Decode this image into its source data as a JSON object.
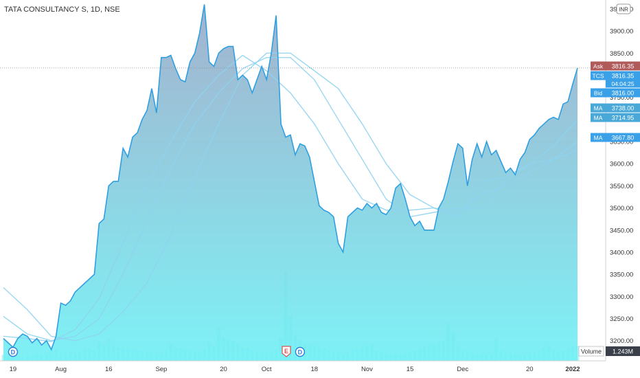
{
  "symbol_title": "TATA CONSULTANCY S, 1D, NSE",
  "currency_badge": "INR",
  "volume_label": "Volume",
  "volume_value": "1.243M",
  "price_labels": [
    {
      "tag": "Ask",
      "value": "3816.35",
      "color": "#b05a5a"
    },
    {
      "tag": "TCS",
      "value": "3816.35",
      "sub": "04:04:25",
      "color": "#3aa0e8"
    },
    {
      "tag": "Bid",
      "value": "3816.00",
      "color": "#3aa0e8"
    },
    {
      "tag": "MA",
      "value": "3738.00",
      "color": "#4aa8d8"
    },
    {
      "tag": "MA",
      "value": "3714.95",
      "color": "#4aa8d8"
    },
    {
      "tag": "MA",
      "value": "3667.80",
      "color": "#3aa0e8"
    }
  ],
  "events": [
    {
      "label": "D",
      "kind": "dividend",
      "x": 2
    },
    {
      "label": "E",
      "kind": "earnings",
      "x": 60
    },
    {
      "label": "D",
      "kind": "dividend",
      "x": 62
    }
  ],
  "colors": {
    "line": "#2f9fe0",
    "ma": "#8fd3ef",
    "area_top": "#9aa9c8",
    "area_bottom": "#6ff0f5",
    "volume": "#7fe9ea",
    "axis_text": "#333333",
    "current_price_line": "#888888"
  },
  "chart_data": {
    "type": "area",
    "title": "TATA CONSULTANCY S, 1D, NSE",
    "xlabel": "",
    "ylabel": "",
    "ylim": [
      3170,
      3970
    ],
    "x_range": [
      0,
      119
    ],
    "x_ticks": [
      {
        "x": 2,
        "label": "19"
      },
      {
        "x": 12,
        "label": "Aug"
      },
      {
        "x": 22,
        "label": "16"
      },
      {
        "x": 33,
        "label": "Sep"
      },
      {
        "x": 46,
        "label": "20"
      },
      {
        "x": 55,
        "label": "Oct"
      },
      {
        "x": 65,
        "label": "18"
      },
      {
        "x": 76,
        "label": "Nov"
      },
      {
        "x": 85,
        "label": "15"
      },
      {
        "x": 96,
        "label": "Dec"
      },
      {
        "x": 110,
        "label": "20"
      },
      {
        "x": 119,
        "label": "2022"
      }
    ],
    "y_ticks": [
      3200,
      3250,
      3300,
      3350,
      3400,
      3450,
      3500,
      3550,
      3600,
      3650,
      3700,
      3750,
      3800,
      3850,
      3900,
      3950
    ],
    "current_price": 3816.35,
    "series": [
      {
        "name": "TCS",
        "x": [
          0,
          1,
          2,
          3,
          4,
          5,
          6,
          7,
          8,
          9,
          10,
          11,
          12,
          13,
          14,
          15,
          16,
          17,
          18,
          19,
          20,
          21,
          22,
          23,
          24,
          25,
          26,
          27,
          28,
          29,
          30,
          31,
          32,
          33,
          34,
          35,
          36,
          37,
          38,
          39,
          40,
          41,
          42,
          43,
          44,
          45,
          46,
          47,
          48,
          49,
          50,
          51,
          52,
          53,
          54,
          55,
          56,
          57,
          58,
          59,
          60,
          61,
          62,
          63,
          64,
          65,
          66,
          67,
          68,
          69,
          70,
          71,
          72,
          73,
          74,
          75,
          76,
          77,
          78,
          79,
          80,
          81,
          82,
          83,
          84,
          85,
          86,
          87,
          88,
          89,
          90,
          91,
          92,
          93,
          94,
          95,
          96,
          97,
          98,
          99,
          100,
          101,
          102,
          103,
          104,
          105,
          106,
          107,
          108,
          109,
          110,
          111,
          112,
          113,
          114,
          115,
          116,
          117,
          118,
          119,
          120
        ],
        "values": [
          3205,
          3195,
          3185,
          3205,
          3215,
          3210,
          3195,
          3205,
          3190,
          3200,
          3180,
          3210,
          3285,
          3280,
          3290,
          3310,
          3320,
          3330,
          3340,
          3350,
          3465,
          3475,
          3550,
          3560,
          3560,
          3635,
          3615,
          3660,
          3670,
          3700,
          3720,
          3770,
          3715,
          3840,
          3840,
          3845,
          3815,
          3790,
          3785,
          3830,
          3850,
          3895,
          3960,
          3830,
          3820,
          3850,
          3860,
          3865,
          3865,
          3790,
          3800,
          3790,
          3760,
          3790,
          3820,
          3790,
          3850,
          3935,
          3690,
          3660,
          3665,
          3620,
          3645,
          3640,
          3615,
          3560,
          3505,
          3495,
          3490,
          3480,
          3420,
          3400,
          3480,
          3490,
          3500,
          3495,
          3510,
          3500,
          3510,
          3490,
          3485,
          3500,
          3545,
          3555,
          3520,
          3480,
          3460,
          3470,
          3450,
          3450,
          3450,
          3500,
          3520,
          3560,
          3605,
          3645,
          3635,
          3550,
          3610,
          3645,
          3615,
          3650,
          3620,
          3630,
          3605,
          3580,
          3590,
          3575,
          3610,
          3625,
          3655,
          3665,
          3680,
          3690,
          3700,
          3705,
          3700,
          3735,
          3740,
          3780,
          3816.35
        ]
      },
      {
        "name": "MA",
        "x": [
          0,
          5,
          10,
          15,
          20,
          25,
          30,
          35,
          40,
          45,
          50,
          55,
          60,
          65,
          70,
          75,
          80,
          85,
          90,
          95,
          100,
          105,
          110,
          115,
          120
        ],
        "values": [
          3210,
          3205,
          3198,
          3225,
          3295,
          3420,
          3550,
          3650,
          3740,
          3800,
          3845,
          3810,
          3760,
          3690,
          3600,
          3520,
          3495,
          3495,
          3500,
          3480,
          3560,
          3570,
          3600,
          3640,
          3700
        ]
      },
      {
        "name": "MA",
        "x": [
          0,
          5,
          10,
          15,
          20,
          25,
          30,
          35,
          40,
          45,
          50,
          55,
          60,
          65,
          70,
          75,
          80,
          85,
          90,
          95,
          100,
          105,
          110,
          115,
          120
        ],
        "values": [
          3255,
          3215,
          3200,
          3210,
          3250,
          3350,
          3470,
          3590,
          3690,
          3760,
          3815,
          3840,
          3840,
          3790,
          3700,
          3610,
          3520,
          3480,
          3490,
          3500,
          3500,
          3560,
          3600,
          3610,
          3630
        ]
      },
      {
        "name": "MA",
        "x": [
          0,
          5,
          10,
          15,
          20,
          25,
          30,
          35,
          40,
          45,
          50,
          55,
          60,
          65,
          70,
          75,
          80,
          85,
          90,
          95,
          100,
          105,
          110,
          115,
          120
        ],
        "values": [
          3320,
          3270,
          3210,
          3200,
          3215,
          3265,
          3330,
          3440,
          3570,
          3690,
          3800,
          3850,
          3850,
          3810,
          3770,
          3690,
          3600,
          3530,
          3500,
          3490,
          3530,
          3550,
          3580,
          3610,
          3650
        ]
      }
    ],
    "volume": [
      8,
      6,
      9,
      7,
      6,
      8,
      7,
      10,
      8,
      9,
      14,
      16,
      12,
      11,
      13,
      10,
      12,
      15,
      18,
      14,
      25,
      22,
      30,
      20,
      18,
      17,
      16,
      15,
      14,
      13,
      12,
      11,
      10,
      12,
      14,
      22,
      18,
      17,
      15,
      14,
      13,
      12,
      16,
      24,
      20,
      45,
      30,
      28,
      26,
      22,
      18,
      16,
      14,
      12,
      11,
      10,
      12,
      14,
      30,
      120,
      60,
      35,
      28,
      24,
      22,
      20,
      18,
      16,
      14,
      12,
      11,
      10,
      12,
      14,
      16,
      18,
      20,
      22,
      14,
      12,
      10,
      9,
      8,
      9,
      10,
      12,
      14,
      16,
      18,
      20,
      22,
      24,
      26,
      50,
      40,
      20,
      14,
      12,
      10,
      9,
      8,
      9,
      10,
      30,
      14,
      12,
      10,
      9,
      8,
      9,
      10,
      12,
      14,
      18,
      20,
      14,
      12,
      14,
      16,
      18,
      20
    ],
    "grid": false,
    "legend": "none"
  }
}
